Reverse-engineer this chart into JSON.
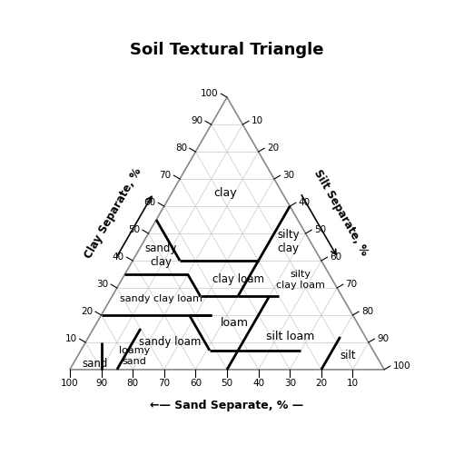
{
  "title": "Soil Textural Triangle",
  "title_fontsize": 13,
  "background_color": "#ffffff",
  "triangle_color": "#888888",
  "grid_color": "#c8c8c8",
  "boundary_color": "#000000",
  "sand_label": "←— Sand Separate, % —",
  "clay_label": "Clay Separate, %",
  "silt_label": "Silt Separate, %",
  "figsize": [
    5.0,
    5.23
  ],
  "dpi": 100
}
